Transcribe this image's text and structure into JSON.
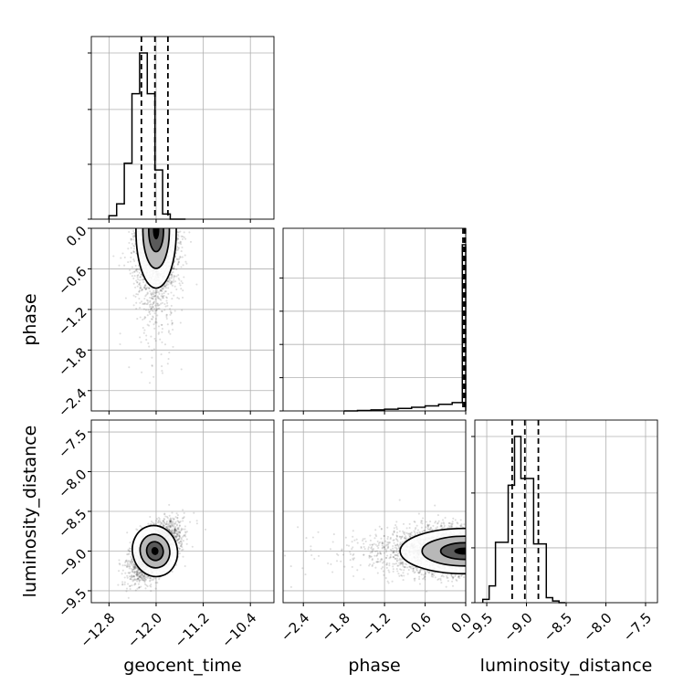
{
  "chart_data": {
    "type": "corner",
    "parameters": [
      "geocent_time",
      "phase",
      "luminosity_distance"
    ],
    "grid": true,
    "axes": {
      "geocent_time": {
        "range": [
          -13.1,
          -10.0
        ],
        "ticks": [
          -12.8,
          -12.0,
          -11.2,
          -10.4
        ],
        "tick_labels": [
          "−12.8",
          "−12.0",
          "−11.2",
          "−10.4"
        ]
      },
      "phase": {
        "range": [
          -2.7,
          0.0
        ],
        "ticks": [
          -2.4,
          -1.8,
          -1.2,
          -0.6,
          0.0
        ],
        "tick_labels": [
          "−2.4",
          "−1.8",
          "−1.2",
          "−0.6",
          "0.0"
        ]
      },
      "luminosity_distance": {
        "range": [
          -9.65,
          -7.35
        ],
        "ticks": [
          -9.5,
          -9.0,
          -8.5,
          -8.0,
          -7.5
        ],
        "tick_labels": [
          "−9.5",
          "−9.0",
          "−8.5",
          "−8.0",
          "−7.5"
        ]
      }
    },
    "histograms": {
      "geocent_time": {
        "bin_edges": [
          -12.8,
          -12.67,
          -12.54,
          -12.41,
          -12.28,
          -12.15,
          -12.02,
          -11.89,
          -11.76,
          -11.63,
          -11.5
        ],
        "counts": [
          0.02,
          0.09,
          0.33,
          0.74,
          0.98,
          0.74,
          0.29,
          0.03,
          0.0,
          0.0
        ],
        "quantiles": [
          -12.25,
          -12.02,
          -11.8
        ],
        "y_ticks": [
          0.0,
          0.33,
          0.66,
          1.0
        ]
      },
      "phase": {
        "bin_edges": [
          -1.8,
          -1.6,
          -1.4,
          -1.2,
          -1.0,
          -0.8,
          -0.6,
          -0.4,
          -0.2,
          -0.05,
          0.0
        ],
        "counts": [
          0.0,
          0.003,
          0.006,
          0.01,
          0.015,
          0.022,
          0.03,
          0.04,
          0.05,
          1.0
        ],
        "quantiles": [
          -0.04,
          -0.015,
          -0.004
        ],
        "y_ticks": [
          0.0,
          0.2,
          0.4,
          0.6,
          0.8
        ]
      },
      "luminosity_distance": {
        "bin_edges": [
          -9.55,
          -9.47,
          -9.39,
          -9.31,
          -9.23,
          -9.15,
          -9.07,
          -8.99,
          -8.91,
          -8.83,
          -8.75,
          -8.67,
          -8.59,
          -8.51
        ],
        "counts": [
          0.02,
          0.1,
          0.36,
          0.36,
          0.7,
          0.99,
          0.74,
          0.74,
          0.35,
          0.35,
          0.03,
          0.01,
          0.0
        ],
        "quantiles": [
          -9.18,
          -9.02,
          -8.85
        ],
        "y_ticks": [
          0.0,
          0.33,
          0.66,
          1.0
        ]
      }
    },
    "scatter_2d": [
      {
        "x": "geocent_time",
        "y": "phase",
        "center": [
          -12.0,
          -0.03
        ],
        "spread": [
          0.18,
          0.45
        ],
        "points": 2200,
        "one_sided_y": "below",
        "x_shift_per_y": 0.0
      },
      {
        "x": "geocent_time",
        "y": "luminosity_distance",
        "center": [
          -12.02,
          -9.0
        ],
        "spread": [
          0.2,
          0.17
        ],
        "points": 3000,
        "correlation": 0.55
      },
      {
        "x": "phase",
        "y": "luminosity_distance",
        "center": [
          -0.02,
          -9.0
        ],
        "spread": [
          0.5,
          0.15
        ],
        "points": 2600,
        "one_sided_x": "below"
      }
    ],
    "xlabels": [
      "geocent_time",
      "phase",
      "luminosity_distance"
    ],
    "ylabels": [
      "",
      "phase",
      "luminosity_distance"
    ]
  }
}
